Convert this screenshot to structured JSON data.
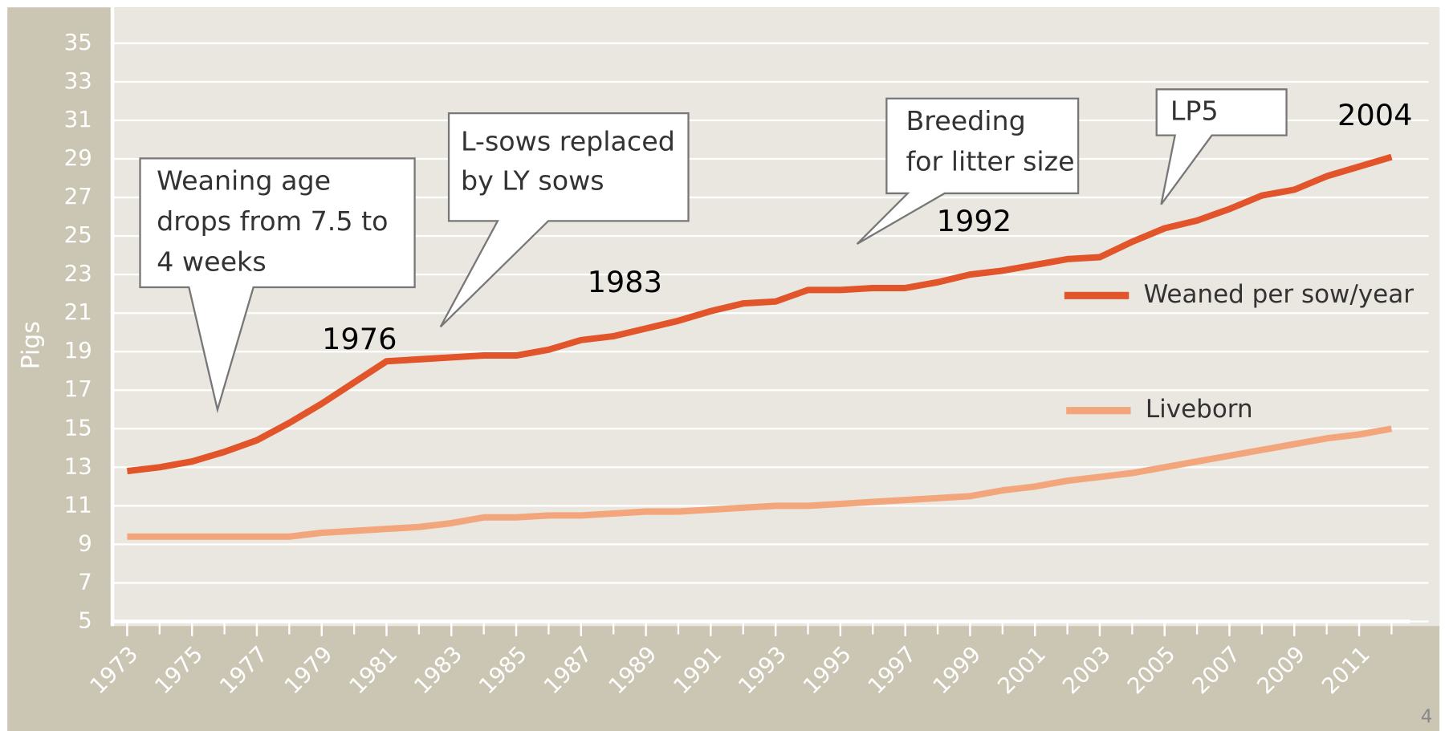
{
  "chart_data": {
    "type": "line",
    "y_label": "Pigs",
    "x": [
      1973,
      1974,
      1975,
      1976,
      1977,
      1978,
      1979,
      1980,
      1981,
      1982,
      1983,
      1984,
      1985,
      1986,
      1987,
      1988,
      1989,
      1990,
      1991,
      1992,
      1993,
      1994,
      1995,
      1996,
      1997,
      1998,
      1999,
      2000,
      2001,
      2002,
      2003,
      2004,
      2005,
      2006,
      2007,
      2008,
      2009,
      2010,
      2011,
      2012
    ],
    "series": [
      {
        "name": "Weaned per sow/year",
        "color": "#e2542a",
        "values": [
          12.8,
          13.0,
          13.3,
          13.8,
          14.4,
          15.3,
          16.3,
          17.4,
          18.5,
          18.6,
          18.7,
          18.8,
          18.8,
          19.1,
          19.6,
          19.8,
          20.2,
          20.6,
          21.1,
          21.5,
          21.6,
          22.2,
          22.2,
          22.3,
          22.3,
          22.6,
          23.0,
          23.2,
          23.5,
          23.8,
          23.9,
          24.7,
          25.4,
          25.8,
          26.4,
          27.1,
          27.4,
          28.1,
          28.6,
          29.1
        ]
      },
      {
        "name": "Liveborn",
        "color": "#f3a67c",
        "values": [
          9.4,
          9.4,
          9.4,
          9.4,
          9.4,
          9.4,
          9.6,
          9.7,
          9.8,
          9.9,
          10.1,
          10.4,
          10.4,
          10.5,
          10.5,
          10.6,
          10.7,
          10.7,
          10.8,
          10.9,
          11.0,
          11.0,
          11.1,
          11.2,
          11.3,
          11.4,
          11.5,
          11.8,
          12.0,
          12.3,
          12.5,
          12.7,
          13.0,
          13.3,
          13.6,
          13.9,
          14.2,
          14.5,
          14.7,
          15.0
        ]
      }
    ],
    "xlim": [
      1972.5,
      2012.5
    ],
    "xticks": [
      1973,
      1975,
      1977,
      1979,
      1981,
      1983,
      1985,
      1987,
      1989,
      1991,
      1993,
      1995,
      1997,
      1999,
      2001,
      2003,
      2005,
      2007,
      2009,
      2011
    ],
    "ylim": [
      5,
      35
    ],
    "yticks": [
      5,
      7,
      9,
      11,
      13,
      15,
      17,
      19,
      21,
      23,
      25,
      27,
      29,
      31,
      33,
      35
    ],
    "grid": true,
    "legend": "right",
    "callouts": [
      [
        "Weaning age",
        "drops from 7.5 to",
        "4 weeks"
      ],
      [
        "L-sows replaced",
        "by LY sows"
      ],
      [
        "Breeding",
        "for litter size"
      ],
      [
        "LP5"
      ]
    ],
    "year_labels": [
      "1976",
      "1983",
      "1992",
      "2004"
    ],
    "page_number": "4"
  }
}
